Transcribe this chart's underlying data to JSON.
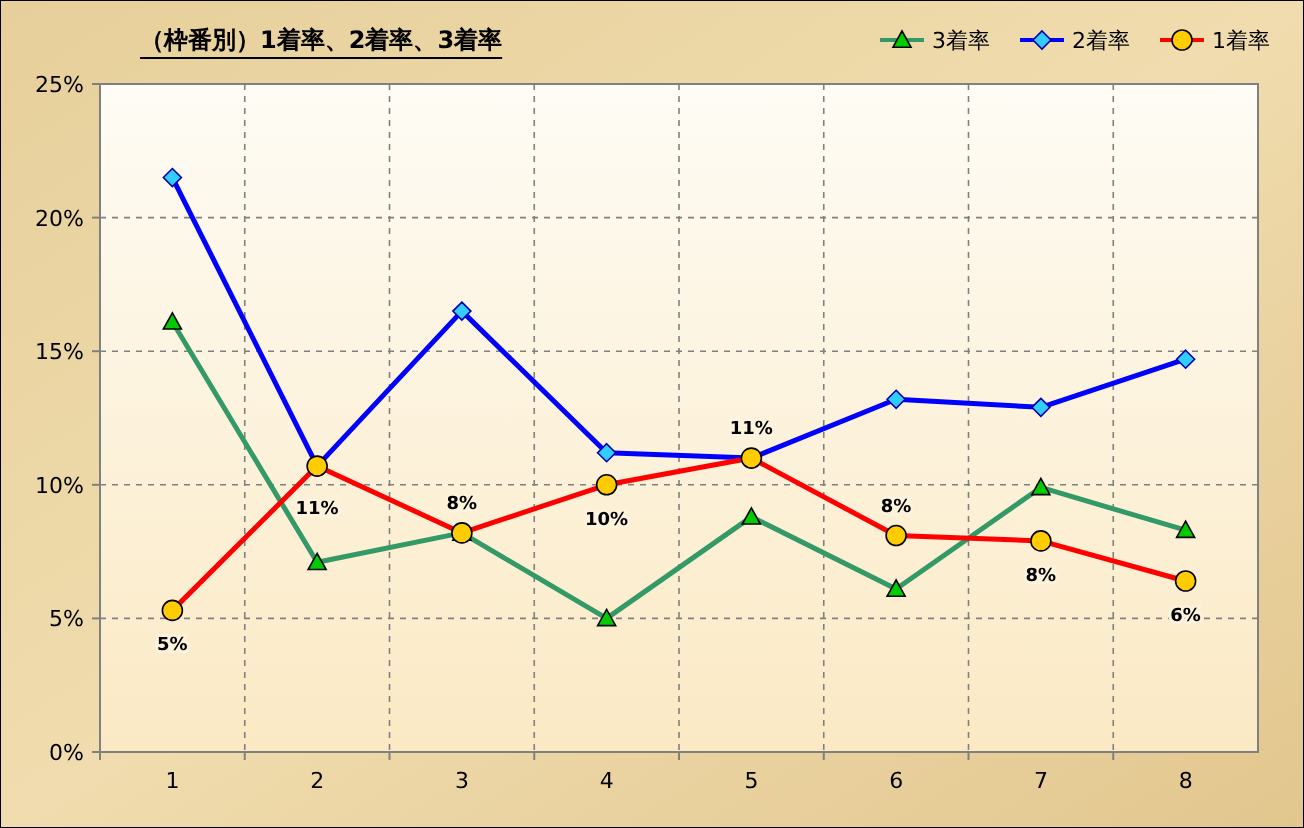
{
  "chart_data": {
    "type": "line",
    "title": "（枠番別）1着率、2着率、3着率",
    "categories": [
      "1",
      "2",
      "3",
      "4",
      "5",
      "6",
      "7",
      "8"
    ],
    "series": [
      {
        "name": "3着率",
        "color": "#339966",
        "marker": "triangle",
        "values": [
          16.1,
          7.1,
          8.2,
          5.0,
          8.8,
          6.1,
          9.9,
          8.3
        ]
      },
      {
        "name": "2着率",
        "color": "#0000ff",
        "marker": "diamond",
        "values": [
          21.5,
          10.7,
          16.5,
          11.2,
          11.0,
          13.2,
          12.9,
          14.7
        ]
      },
      {
        "name": "1着率",
        "color": "#ff0000",
        "marker": "circle",
        "values": [
          5.3,
          10.7,
          8.2,
          10.0,
          11.0,
          8.1,
          7.9,
          6.4
        ],
        "value_labels": [
          "5%",
          "11%",
          "8%",
          "10%",
          "11%",
          "8%",
          "8%",
          "6%"
        ]
      }
    ],
    "ylim": [
      0,
      25
    ],
    "yticks": [
      {
        "value": 0,
        "label": "0%"
      },
      {
        "value": 5,
        "label": "5%"
      },
      {
        "value": 10,
        "label": "10%"
      },
      {
        "value": 15,
        "label": "15%"
      },
      {
        "value": 20,
        "label": "20%"
      },
      {
        "value": 25,
        "label": "25%"
      }
    ],
    "grid": true,
    "legend": "top right",
    "line_style": "solid"
  }
}
